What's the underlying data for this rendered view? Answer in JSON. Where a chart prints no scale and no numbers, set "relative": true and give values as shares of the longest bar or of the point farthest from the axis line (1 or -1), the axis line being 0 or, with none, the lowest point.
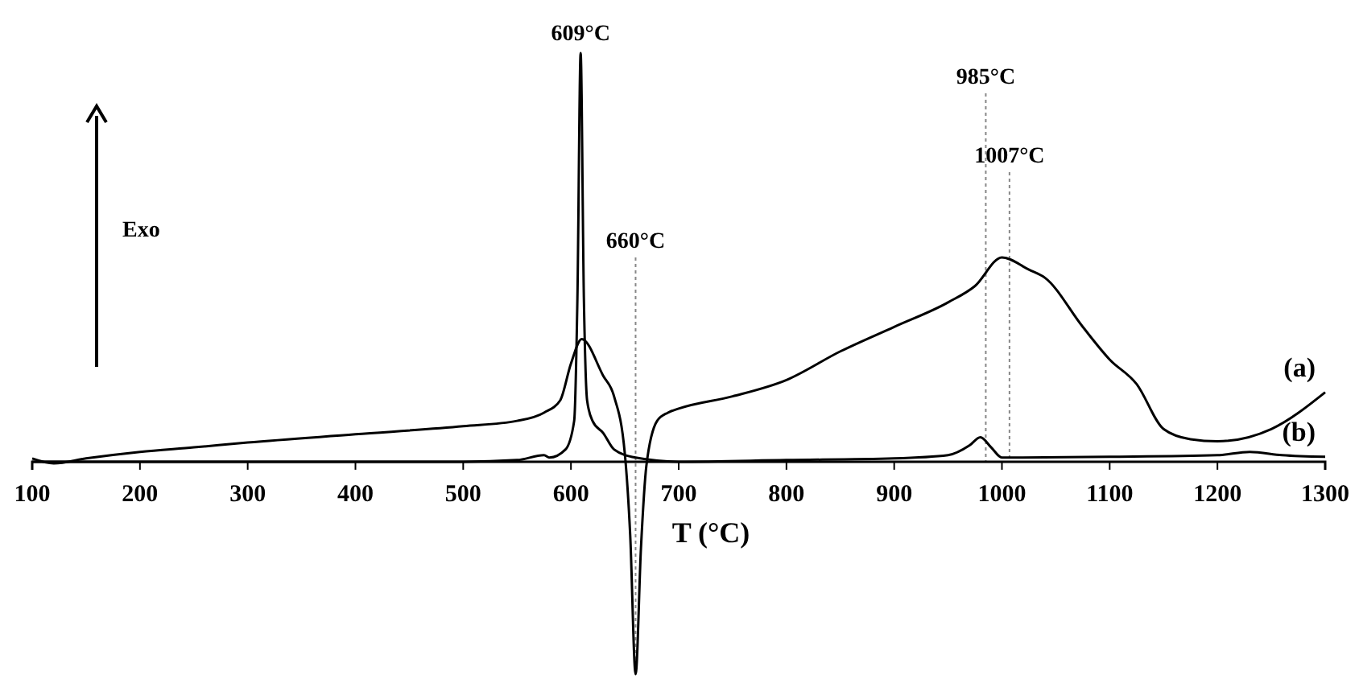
{
  "chart_data": {
    "type": "line",
    "relative": true,
    "xlabel": "T (°C)",
    "xlim": [
      100,
      1300
    ],
    "xticks": [
      100,
      200,
      300,
      400,
      500,
      600,
      700,
      800,
      900,
      1000,
      1100,
      1200,
      1300
    ],
    "marker": "none",
    "line_style": "solid",
    "series": [
      {
        "name": "(a)",
        "color": "#000000",
        "x": [
          100,
          120,
          150,
          200,
          250,
          300,
          400,
          500,
          550,
          575,
          590,
          600,
          610,
          630,
          640,
          650,
          655,
          660,
          665,
          670,
          680,
          690,
          700,
          750,
          800,
          850,
          900,
          950,
          975,
          1000,
          1025,
          1040,
          1075,
          1100,
          1125,
          1150,
          1175,
          1200,
          1250,
          1300
        ],
        "values": [
          0.008,
          -0.004,
          0.008,
          0.024,
          0.035,
          0.047,
          0.067,
          0.087,
          0.1,
          0.12,
          0.15,
          0.24,
          0.3,
          0.21,
          0.16,
          0.02,
          -0.18,
          -0.52,
          -0.21,
          -0.01,
          0.1,
          0.12,
          0.13,
          0.16,
          0.2,
          0.27,
          0.33,
          0.39,
          0.43,
          0.5,
          0.47,
          0.45,
          0.33,
          0.25,
          0.19,
          0.08,
          0.055,
          0.05,
          0.08,
          0.17
        ]
      },
      {
        "name": "(b)",
        "color": "#000000",
        "x": [
          100,
          300,
          500,
          550,
          575,
          580,
          595,
          603,
          606,
          609,
          612,
          615,
          620,
          630,
          640,
          660,
          700,
          800,
          900,
          950,
          970,
          980,
          990,
          1000,
          1100,
          1200,
          1230,
          1260,
          1300
        ],
        "values": [
          0,
          0,
          0,
          0.004,
          0.016,
          0.01,
          0.03,
          0.1,
          0.4,
          1,
          0.4,
          0.15,
          0.1,
          0.07,
          0.03,
          0.01,
          0,
          0.004,
          0.008,
          0.016,
          0.04,
          0.06,
          0.035,
          0.01,
          0.012,
          0.016,
          0.024,
          0.016,
          0.012
        ]
      }
    ],
    "ref_lines": [
      {
        "axis": "x",
        "value": 660,
        "label": "660°C",
        "color": "#888888",
        "line_style": "dotted"
      },
      {
        "axis": "x",
        "value": 985,
        "label": "985°C",
        "color": "#888888",
        "line_style": "dotted"
      },
      {
        "axis": "x",
        "value": 1007,
        "label": "1007°C",
        "color": "#888888",
        "line_style": "dotted"
      }
    ],
    "annotations": [
      {
        "text": "609°C",
        "x": 609,
        "y": 1
      },
      "Exo"
    ]
  }
}
